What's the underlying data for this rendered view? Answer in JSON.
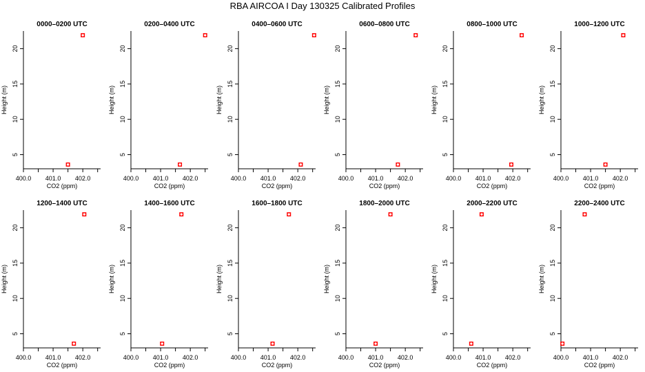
{
  "figure": {
    "title": "RBA AIRCOA I  Day 130325  Calibrated Profiles",
    "marker_color": "#ff0000"
  },
  "chart_data": [
    {
      "type": "scatter",
      "title": "0000–0200 UTC",
      "xlabel": "CO2 (ppm)",
      "ylabel": "Height (m)",
      "xlim": [
        400.0,
        402.6
      ],
      "ylim": [
        3.0,
        22.5
      ],
      "x_ticks": [
        "400.0",
        "401.0",
        "402.0"
      ],
      "y_ticks": [
        "5",
        "10",
        "15",
        "20"
      ],
      "points": [
        {
          "x": 401.5,
          "y": 3.6
        },
        {
          "x": 402.0,
          "y": 21.9
        }
      ]
    },
    {
      "type": "scatter",
      "title": "0200–0400 UTC",
      "xlabel": "CO2 (ppm)",
      "ylabel": "Height (m)",
      "xlim": [
        400.0,
        402.6
      ],
      "ylim": [
        3.0,
        22.5
      ],
      "x_ticks": [
        "400.0",
        "401.0",
        "402.0"
      ],
      "y_ticks": [
        "5",
        "10",
        "15",
        "20"
      ],
      "points": [
        {
          "x": 401.65,
          "y": 3.6
        },
        {
          "x": 402.5,
          "y": 21.9
        }
      ]
    },
    {
      "type": "scatter",
      "title": "0400–0600 UTC",
      "xlabel": "CO2 (ppm)",
      "ylabel": "Height (m)",
      "xlim": [
        400.0,
        402.6
      ],
      "ylim": [
        3.0,
        22.5
      ],
      "x_ticks": [
        "400.0",
        "401.0",
        "402.0"
      ],
      "y_ticks": [
        "5",
        "10",
        "15",
        "20"
      ],
      "points": [
        {
          "x": 402.1,
          "y": 3.6
        },
        {
          "x": 402.55,
          "y": 21.9
        }
      ]
    },
    {
      "type": "scatter",
      "title": "0600–0800 UTC",
      "xlabel": "CO2 (ppm)",
      "ylabel": "Height (m)",
      "xlim": [
        400.0,
        402.6
      ],
      "ylim": [
        3.0,
        22.5
      ],
      "x_ticks": [
        "400.0",
        "401.0",
        "402.0"
      ],
      "y_ticks": [
        "5",
        "10",
        "15",
        "20"
      ],
      "points": [
        {
          "x": 401.75,
          "y": 3.6
        },
        {
          "x": 402.35,
          "y": 21.9
        }
      ]
    },
    {
      "type": "scatter",
      "title": "0800–1000 UTC",
      "xlabel": "CO2 (ppm)",
      "ylabel": "Height (m)",
      "xlim": [
        400.0,
        402.6
      ],
      "ylim": [
        3.0,
        22.5
      ],
      "x_ticks": [
        "400.0",
        "401.0",
        "402.0"
      ],
      "y_ticks": [
        "5",
        "10",
        "15",
        "20"
      ],
      "points": [
        {
          "x": 401.95,
          "y": 3.6
        },
        {
          "x": 402.3,
          "y": 21.9
        }
      ]
    },
    {
      "type": "scatter",
      "title": "1000–1200 UTC",
      "xlabel": "CO2 (ppm)",
      "ylabel": "Height (m)",
      "xlim": [
        400.0,
        402.6
      ],
      "ylim": [
        3.0,
        22.5
      ],
      "x_ticks": [
        "400.0",
        "401.0",
        "402.0"
      ],
      "y_ticks": [
        "5",
        "10",
        "15",
        "20"
      ],
      "points": [
        {
          "x": 401.5,
          "y": 3.6
        },
        {
          "x": 402.1,
          "y": 21.9
        }
      ]
    },
    {
      "type": "scatter",
      "title": "1200–1400 UTC",
      "xlabel": "CO2 (ppm)",
      "ylabel": "Height (m)",
      "xlim": [
        400.0,
        402.6
      ],
      "ylim": [
        3.0,
        22.5
      ],
      "x_ticks": [
        "400.0",
        "401.0",
        "402.0"
      ],
      "y_ticks": [
        "5",
        "10",
        "15",
        "20"
      ],
      "points": [
        {
          "x": 401.7,
          "y": 3.6
        },
        {
          "x": 402.05,
          "y": 21.9
        }
      ]
    },
    {
      "type": "scatter",
      "title": "1400–1600 UTC",
      "xlabel": "CO2 (ppm)",
      "ylabel": "Height (m)",
      "xlim": [
        400.0,
        402.6
      ],
      "ylim": [
        3.0,
        22.5
      ],
      "x_ticks": [
        "400.0",
        "401.0",
        "402.0"
      ],
      "y_ticks": [
        "5",
        "10",
        "15",
        "20"
      ],
      "points": [
        {
          "x": 401.05,
          "y": 3.6
        },
        {
          "x": 401.7,
          "y": 21.9
        }
      ]
    },
    {
      "type": "scatter",
      "title": "1600–1800 UTC",
      "xlabel": "CO2 (ppm)",
      "ylabel": "Height (m)",
      "xlim": [
        400.0,
        402.6
      ],
      "ylim": [
        3.0,
        22.5
      ],
      "x_ticks": [
        "400.0",
        "401.0",
        "402.0"
      ],
      "y_ticks": [
        "5",
        "10",
        "15",
        "20"
      ],
      "points": [
        {
          "x": 401.15,
          "y": 3.6
        },
        {
          "x": 401.7,
          "y": 21.9
        }
      ]
    },
    {
      "type": "scatter",
      "title": "1800–2000 UTC",
      "xlabel": "CO2 (ppm)",
      "ylabel": "Height (m)",
      "xlim": [
        400.0,
        402.6
      ],
      "ylim": [
        3.0,
        22.5
      ],
      "x_ticks": [
        "400.0",
        "401.0",
        "402.0"
      ],
      "y_ticks": [
        "5",
        "10",
        "15",
        "20"
      ],
      "points": [
        {
          "x": 401.0,
          "y": 3.6
        },
        {
          "x": 401.5,
          "y": 21.9
        }
      ]
    },
    {
      "type": "scatter",
      "title": "2000–2200 UTC",
      "xlabel": "CO2 (ppm)",
      "ylabel": "Height (m)",
      "xlim": [
        400.0,
        402.6
      ],
      "ylim": [
        3.0,
        22.5
      ],
      "x_ticks": [
        "400.0",
        "401.0",
        "402.0"
      ],
      "y_ticks": [
        "5",
        "10",
        "15",
        "20"
      ],
      "points": [
        {
          "x": 400.6,
          "y": 3.6
        },
        {
          "x": 400.95,
          "y": 21.9
        }
      ]
    },
    {
      "type": "scatter",
      "title": "2200–2400 UTC",
      "xlabel": "CO2 (ppm)",
      "ylabel": "Height (m)",
      "xlim": [
        400.0,
        402.6
      ],
      "ylim": [
        3.0,
        22.5
      ],
      "x_ticks": [
        "400.0",
        "401.0",
        "402.0"
      ],
      "y_ticks": [
        "5",
        "10",
        "15",
        "20"
      ],
      "points": [
        {
          "x": 400.05,
          "y": 3.6
        },
        {
          "x": 400.8,
          "y": 21.9
        }
      ]
    }
  ]
}
